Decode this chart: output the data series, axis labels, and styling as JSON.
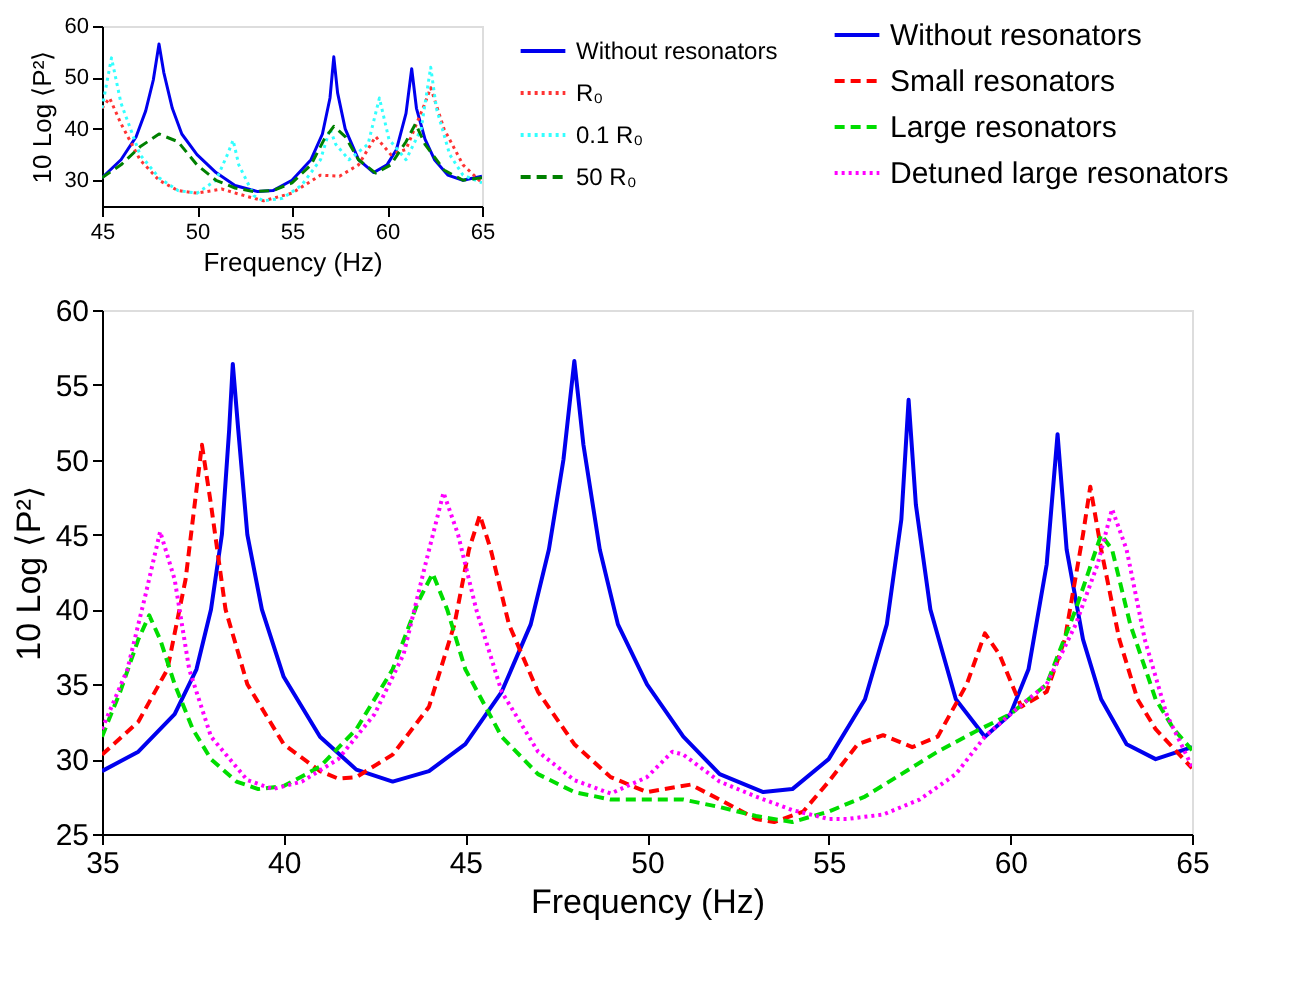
{
  "chart_data": [
    {
      "type": "line",
      "xlabel": "Frequency (Hz)",
      "ylabel": "10 Log ⟨P²⟩",
      "xlim": [
        45,
        65
      ],
      "ylim": [
        25,
        60
      ],
      "xticks": [
        45,
        50,
        55,
        60,
        65
      ],
      "yticks": [
        30,
        40,
        50,
        60
      ],
      "grid": false,
      "legend": "right",
      "marker": "none",
      "series": [
        {
          "name": "Without resonators",
          "color": "#0000ee",
          "line_style": "solid",
          "x": [
            45,
            46,
            46.8,
            47.3,
            47.7,
            48,
            48.25,
            48.7,
            49.2,
            50,
            51,
            52,
            53.2,
            54,
            55,
            56,
            56.6,
            57,
            57.2,
            57.4,
            57.8,
            58.5,
            59.3,
            60,
            60.5,
            61,
            61.3,
            61.55,
            62,
            62.5,
            63.2,
            64,
            65
          ],
          "values": [
            30.5,
            34,
            38.5,
            43.5,
            49.5,
            56.5,
            51,
            44,
            39,
            35,
            31.5,
            29,
            27.8,
            28,
            30,
            34,
            39,
            46,
            54,
            47,
            40,
            34,
            31.5,
            33,
            36,
            43,
            51.7,
            44,
            38,
            34,
            31,
            30,
            30.8
          ]
        },
        {
          "name": "R₀",
          "color": "#ff3333",
          "line_style": "dotted",
          "x": [
            45,
            45.4,
            46,
            47,
            48,
            49,
            50,
            51.3,
            52.5,
            53.5,
            55,
            56.5,
            57.5,
            58.5,
            59.4,
            60.2,
            61,
            62,
            62.3,
            63,
            64,
            65
          ],
          "values": [
            44,
            46,
            41,
            34,
            30,
            28,
            27.5,
            28.3,
            27,
            26,
            27.5,
            31,
            30.8,
            33,
            38.5,
            35,
            36,
            45,
            48,
            40,
            33,
            29.5
          ]
        },
        {
          "name": "0.1 R₀",
          "color": "#33ffff",
          "line_style": "dotted",
          "x": [
            45,
            45.5,
            46,
            47,
            48,
            49,
            50,
            51,
            51.6,
            51.9,
            52.2,
            53,
            53.5,
            54.5,
            55.5,
            56.5,
            57,
            57.3,
            58,
            59,
            59.6,
            60.1,
            61,
            61.8,
            62.3,
            62.6,
            63.3,
            64,
            65
          ],
          "values": [
            44,
            53.8,
            45,
            35,
            30.5,
            28,
            27.5,
            30,
            35,
            37.8,
            33,
            27,
            26,
            26.5,
            29,
            34,
            40,
            37,
            34,
            37,
            46,
            38,
            34,
            40,
            52,
            44,
            35,
            31,
            29.5
          ]
        },
        {
          "name": "50 R₀",
          "color": "#008000",
          "line_style": "dashed",
          "x": [
            45,
            46,
            47,
            48,
            49,
            50,
            51,
            52,
            53,
            54,
            55,
            56,
            56.7,
            57.2,
            57.8,
            58.5,
            59.4,
            60.2,
            61,
            61.5,
            62,
            63,
            64,
            65
          ],
          "values": [
            30.5,
            33,
            36.5,
            39,
            37.5,
            33,
            30,
            28.5,
            27.8,
            28,
            29.5,
            33,
            38,
            40.5,
            38.5,
            34,
            31.4,
            33,
            37.5,
            41,
            37,
            32,
            30,
            30.5
          ]
        }
      ]
    },
    {
      "type": "line",
      "xlabel": "Frequency (Hz)",
      "ylabel": "10 Log ⟨P²⟩",
      "xlim": [
        35,
        65
      ],
      "ylim": [
        25,
        60
      ],
      "xticks": [
        35,
        40,
        45,
        50,
        55,
        60,
        65
      ],
      "yticks": [
        25,
        30,
        35,
        40,
        45,
        50,
        55,
        60
      ],
      "grid": false,
      "legend": "top right",
      "marker": "none",
      "series": [
        {
          "name": "Without resonators",
          "color": "#0000ee",
          "line_style": "solid",
          "x": [
            35,
            36,
            37,
            37.6,
            38,
            38.3,
            38.5,
            38.6,
            38.75,
            39,
            39.4,
            40,
            41,
            42,
            43,
            44,
            45,
            46,
            46.8,
            47.3,
            47.7,
            48,
            48.25,
            48.7,
            49.2,
            50,
            51,
            52,
            53.2,
            54,
            55,
            56,
            56.6,
            57,
            57.2,
            57.4,
            57.8,
            58.5,
            59.3,
            60,
            60.5,
            61,
            61.3,
            61.55,
            62,
            62.5,
            63.2,
            64,
            65
          ],
          "values": [
            29.2,
            30.5,
            33,
            36,
            40,
            45,
            52,
            56.4,
            52,
            45,
            40,
            35.5,
            31.5,
            29.3,
            28.5,
            29.2,
            31,
            34.5,
            39,
            44,
            50,
            56.6,
            51,
            44,
            39,
            35,
            31.5,
            29,
            27.8,
            28,
            30,
            34,
            39,
            46,
            54,
            47,
            40,
            34,
            31.5,
            33,
            36,
            43,
            51.7,
            44,
            38,
            34,
            31,
            30,
            30.8
          ]
        },
        {
          "name": "Small resonators",
          "color": "#ff0000",
          "line_style": "dashed",
          "x": [
            35,
            36,
            36.8,
            37.3,
            37.6,
            37.75,
            38,
            38.4,
            39,
            40,
            41,
            41.5,
            42,
            43,
            44,
            44.7,
            45.1,
            45.4,
            45.7,
            46.2,
            47,
            48,
            49,
            50,
            51.2,
            52,
            53,
            53.5,
            54.3,
            55,
            55.8,
            56.5,
            57.3,
            58,
            58.8,
            59.3,
            59.7,
            60.3,
            61,
            61.5,
            62,
            62.2,
            62.5,
            63,
            63.5,
            64,
            65
          ],
          "values": [
            30.3,
            32.5,
            36,
            42,
            48,
            51,
            47,
            40,
            35,
            31,
            29.2,
            28.7,
            28.8,
            30.3,
            33.5,
            39,
            44,
            46.3,
            44,
            39,
            34.5,
            31,
            28.8,
            27.8,
            28.3,
            27.3,
            26,
            25.8,
            26.5,
            28.5,
            31,
            31.6,
            30.8,
            31.5,
            35,
            38.4,
            37,
            33.5,
            34.5,
            38,
            45,
            48.2,
            44,
            38,
            34,
            32,
            29.4
          ]
        },
        {
          "name": "Large resonators",
          "color": "#00dd00",
          "line_style": "dashed",
          "x": [
            35,
            35.5,
            36,
            36.3,
            36.6,
            37,
            37.5,
            38,
            38.7,
            39.3,
            40,
            41,
            42,
            43,
            43.7,
            44.1,
            44.5,
            45,
            46,
            47,
            48,
            49,
            50,
            51,
            52,
            53,
            54,
            55,
            56,
            57,
            58,
            59,
            60,
            61,
            61.8,
            62.5,
            62.8,
            63.3,
            64,
            64.5,
            65
          ],
          "values": [
            31.5,
            34.5,
            38,
            39.6,
            38,
            35,
            32,
            30,
            28.5,
            28,
            28.2,
            29.5,
            32,
            36,
            40.5,
            42.4,
            40,
            36,
            31.5,
            29,
            27.8,
            27.3,
            27.3,
            27.3,
            26.8,
            26.2,
            25.8,
            26.5,
            27.5,
            29,
            30.5,
            31.8,
            33,
            35,
            40,
            45,
            44,
            39,
            34,
            32,
            30.6
          ]
        },
        {
          "name": "Detuned large resonators",
          "color": "#ff00ff",
          "line_style": "dotted",
          "x": [
            35,
            35.7,
            36.2,
            36.6,
            37,
            37.4,
            38,
            39,
            39.7,
            40.5,
            41.5,
            42.5,
            43.3,
            43.9,
            44.4,
            44.8,
            45.3,
            46,
            47,
            48,
            49,
            50,
            50.7,
            51,
            52,
            53,
            54,
            55,
            55.5,
            56.5,
            57.5,
            58.5,
            59.3,
            60,
            61,
            61.8,
            62.4,
            62.8,
            63.2,
            63.7,
            64.3,
            65
          ],
          "values": [
            32,
            36,
            41,
            45.2,
            42,
            36,
            31.5,
            28.6,
            28,
            28.5,
            30,
            33,
            37,
            43,
            47.8,
            45,
            40,
            34.5,
            30.5,
            28.6,
            27.7,
            28.8,
            30.5,
            30.3,
            28.5,
            27.5,
            26.6,
            26,
            26,
            26.3,
            27.3,
            29,
            31.5,
            33,
            35,
            39,
            43,
            46.7,
            44,
            38,
            33,
            29.5
          ]
        }
      ]
    }
  ]
}
